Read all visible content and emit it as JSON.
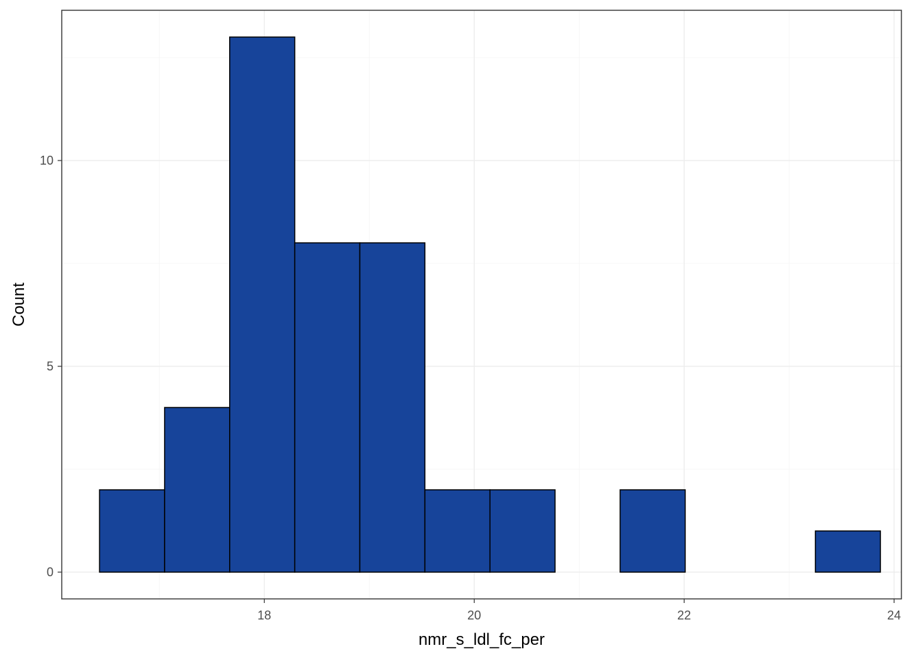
{
  "chart_data": {
    "type": "bar",
    "subtype": "histogram",
    "title": "",
    "xlabel": "nmr_s_ldl_fc_per",
    "ylabel": "Count",
    "bins": [
      {
        "x0": 16.43,
        "x1": 17.05,
        "count": 2
      },
      {
        "x0": 17.05,
        "x1": 17.67,
        "count": 4
      },
      {
        "x0": 17.67,
        "x1": 18.29,
        "count": 13
      },
      {
        "x0": 18.29,
        "x1": 18.91,
        "count": 8
      },
      {
        "x0": 18.91,
        "x1": 19.53,
        "count": 8
      },
      {
        "x0": 19.53,
        "x1": 20.15,
        "count": 2
      },
      {
        "x0": 20.15,
        "x1": 20.77,
        "count": 2
      },
      {
        "x0": 20.77,
        "x1": 21.39,
        "count": 0
      },
      {
        "x0": 21.39,
        "x1": 22.01,
        "count": 2
      },
      {
        "x0": 22.01,
        "x1": 22.63,
        "count": 0
      },
      {
        "x0": 22.63,
        "x1": 23.25,
        "count": 0
      },
      {
        "x0": 23.25,
        "x1": 23.87,
        "count": 1
      }
    ],
    "xlim": [
      16.07,
      24.07
    ],
    "ylim": [
      -0.65,
      13.65
    ],
    "x_ticks": [
      18,
      20,
      22,
      24
    ],
    "x_tick_labels": [
      "18",
      "20",
      "22",
      "24"
    ],
    "y_ticks": [
      0,
      5,
      10
    ],
    "y_tick_labels": [
      "0",
      "5",
      "10"
    ],
    "x_minor_ticks": [
      17,
      19,
      21,
      23
    ],
    "y_minor_ticks": [
      2.5,
      7.5,
      12.5
    ],
    "grid": true,
    "legend": "none",
    "colors": {
      "bar_fill": "#17449a",
      "bar_stroke": "#000000",
      "grid_major": "#ebebeb",
      "grid_minor": "#f5f5f5",
      "panel_border": "#333333",
      "tick_label": "#4d4d4d"
    }
  }
}
